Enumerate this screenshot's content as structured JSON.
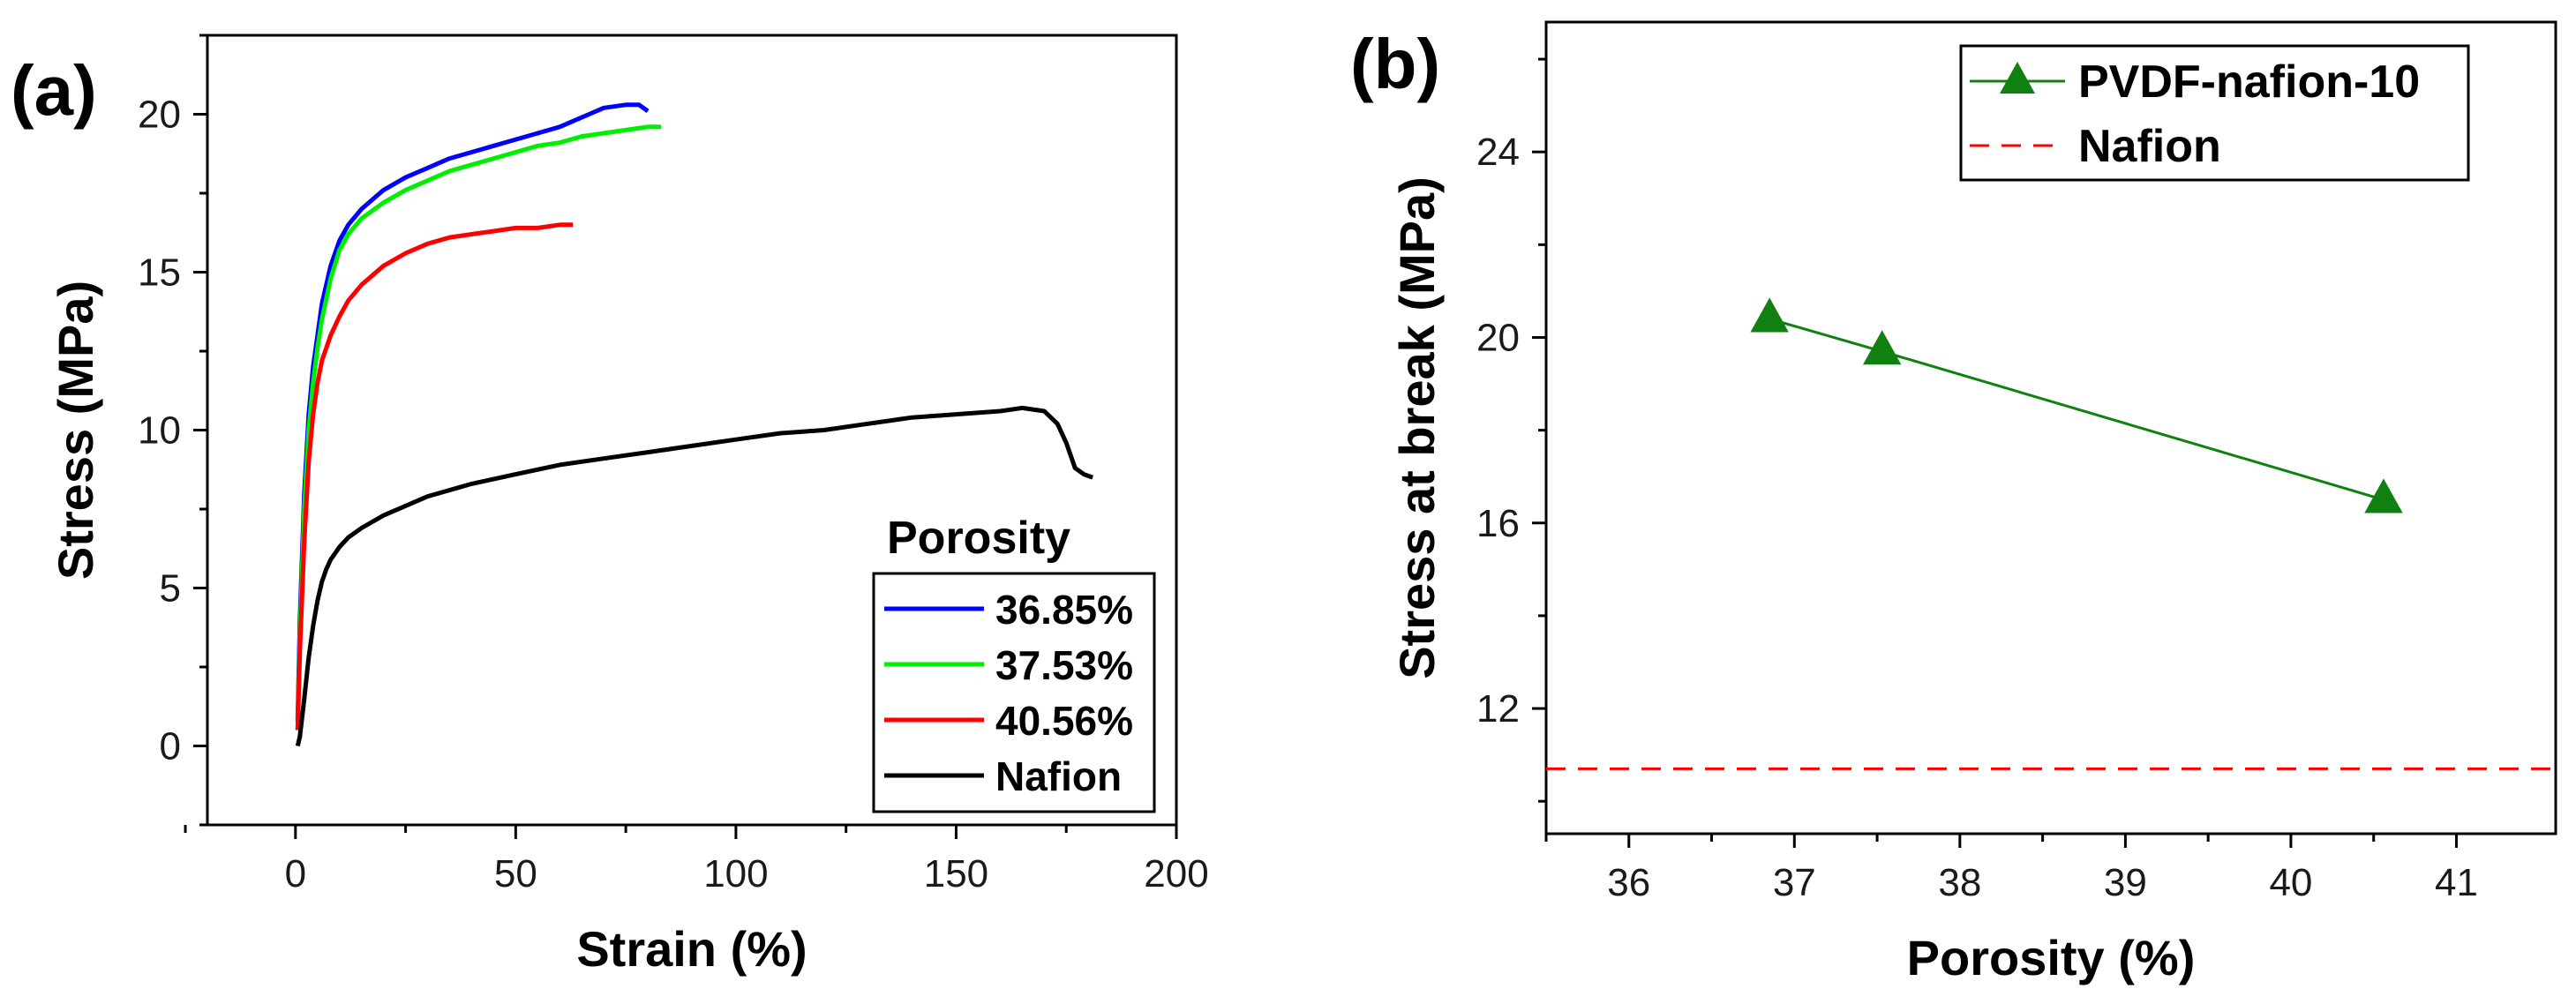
{
  "chart_data": [
    {
      "type": "line",
      "panel_label": "(a)",
      "xlabel": "Strain (%)",
      "ylabel": "Stress (MPa)",
      "xlim": [
        -20,
        200
      ],
      "ylim": [
        -2.5,
        22.5
      ],
      "xticks": [
        0,
        50,
        100,
        150,
        200
      ],
      "yticks": [
        0,
        5,
        10,
        15,
        20
      ],
      "legend_title": "Porosity",
      "legend_position": "bottom-right",
      "series": [
        {
          "name": "36.85%",
          "color": "#0000ff",
          "x": [
            0.5,
            1,
            2,
            3,
            4,
            5,
            6,
            8,
            10,
            12,
            15,
            20,
            25,
            30,
            35,
            40,
            45,
            50,
            55,
            60,
            65,
            70,
            75,
            78,
            80
          ],
          "y": [
            0.8,
            4,
            8,
            10.5,
            12,
            13,
            14,
            15.2,
            16,
            16.5,
            17,
            17.6,
            18,
            18.3,
            18.6,
            18.8,
            19.0,
            19.2,
            19.4,
            19.6,
            19.9,
            20.2,
            20.3,
            20.3,
            20.1
          ]
        },
        {
          "name": "37.53%",
          "color": "#00ee00",
          "x": [
            0.5,
            1,
            2,
            3,
            4,
            5,
            6,
            8,
            10,
            12,
            15,
            20,
            25,
            30,
            35,
            40,
            45,
            50,
            55,
            60,
            65,
            70,
            75,
            80,
            83
          ],
          "y": [
            0.5,
            3.5,
            7.5,
            10,
            11.5,
            12.6,
            13.5,
            14.8,
            15.7,
            16.2,
            16.7,
            17.2,
            17.6,
            17.9,
            18.2,
            18.4,
            18.6,
            18.8,
            19.0,
            19.1,
            19.3,
            19.4,
            19.5,
            19.6,
            19.6
          ]
        },
        {
          "name": "40.56%",
          "color": "#ff0000",
          "x": [
            0.5,
            1,
            2,
            3,
            4,
            5,
            6,
            8,
            10,
            12,
            15,
            20,
            25,
            30,
            35,
            40,
            45,
            50,
            55,
            60,
            63
          ],
          "y": [
            0.5,
            3,
            6.5,
            9,
            10.5,
            11.5,
            12.2,
            13,
            13.6,
            14.1,
            14.6,
            15.2,
            15.6,
            15.9,
            16.1,
            16.2,
            16.3,
            16.4,
            16.4,
            16.5,
            16.5
          ]
        },
        {
          "name": "Nafion",
          "color": "#000000",
          "x": [
            0.5,
            1,
            2,
            3,
            4,
            5,
            6,
            7,
            8,
            10,
            12,
            15,
            20,
            25,
            30,
            40,
            50,
            60,
            70,
            80,
            90,
            100,
            110,
            120,
            130,
            140,
            150,
            160,
            165,
            170,
            173,
            175,
            177,
            179,
            181
          ],
          "y": [
            0,
            0.3,
            1.5,
            2.8,
            3.8,
            4.6,
            5.2,
            5.6,
            5.9,
            6.3,
            6.6,
            6.9,
            7.3,
            7.6,
            7.9,
            8.3,
            8.6,
            8.9,
            9.1,
            9.3,
            9.5,
            9.7,
            9.9,
            10.0,
            10.2,
            10.4,
            10.5,
            10.6,
            10.7,
            10.6,
            10.2,
            9.6,
            8.8,
            8.6,
            8.5
          ]
        }
      ]
    },
    {
      "type": "line",
      "panel_label": "(b)",
      "xlabel": "Porosity (%)",
      "ylabel": "Stress at break (MPa)",
      "xlim": [
        35.5,
        41.6
      ],
      "ylim": [
        9.3,
        26.8
      ],
      "xticks": [
        36,
        37,
        38,
        39,
        40,
        41
      ],
      "yticks": [
        12,
        16,
        20,
        24
      ],
      "legend_position": "top-right",
      "series": [
        {
          "name": "PVDF-nafion-10",
          "color": "#108010",
          "marker": "triangle",
          "x": [
            36.85,
            37.53,
            40.56
          ],
          "y": [
            20.4,
            19.7,
            16.5
          ]
        },
        {
          "name": "Nafion",
          "color": "#ff0000",
          "style": "dashed",
          "y_constant": 10.7
        }
      ]
    }
  ]
}
